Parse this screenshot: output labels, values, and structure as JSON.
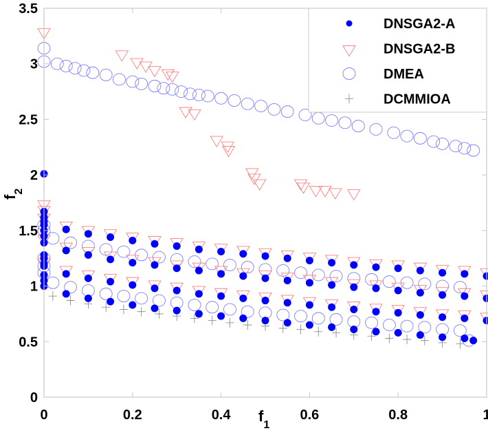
{
  "chart_data": {
    "type": "scatter",
    "title": "",
    "xlabel": "f",
    "xlabel_sub": "1",
    "ylabel": "f",
    "ylabel_sub": "2",
    "xlim": [
      0,
      1
    ],
    "ylim": [
      0,
      3.5
    ],
    "xticks": [
      "0",
      "0.2",
      "0.4",
      "0.6",
      "0.8",
      "1"
    ],
    "yticks": [
      "0",
      "0.5",
      "1",
      "1.5",
      "2",
      "2.5",
      "3",
      "3.5"
    ],
    "grid": false,
    "legend_position": "top-right",
    "series": [
      {
        "name": "DMEA",
        "marker": "circle-open",
        "color": "#7f7fff",
        "x": [
          0,
          0,
          0.03,
          0.05,
          0.07,
          0.09,
          0.11,
          0.14,
          0.17,
          0.2,
          0.22,
          0.25,
          0.27,
          0.29,
          0.31,
          0.33,
          0.35,
          0.37,
          0.4,
          0.43,
          0.46,
          0.49,
          0.52,
          0.55,
          0.59,
          0.62,
          0.65,
          0.68,
          0.71,
          0.75,
          0.79,
          0.82,
          0.85,
          0.88,
          0.9,
          0.93,
          0.95,
          0.97,
          0.02,
          0.06,
          0.1,
          0.14,
          0.18,
          0.22,
          0.26,
          0.3,
          0.34,
          0.38,
          0.42,
          0.46,
          0.5,
          0.54,
          0.58,
          0.62,
          0.66,
          0.7,
          0.74,
          0.78,
          0.82,
          0.86,
          0.9,
          0.94,
          0.02,
          0.06,
          0.1,
          0.14,
          0.18,
          0.22,
          0.26,
          0.3,
          0.34,
          0.38,
          0.42,
          0.46,
          0.5,
          0.54,
          0.58,
          0.62,
          0.66,
          0.7,
          0.74,
          0.78,
          0.82,
          0.86,
          0.9,
          0.94,
          0,
          0,
          0,
          0,
          0,
          0.96
        ],
        "y": [
          3.14,
          3.02,
          3.0,
          2.98,
          2.96,
          2.94,
          2.92,
          2.9,
          2.86,
          2.84,
          2.82,
          2.8,
          2.78,
          2.77,
          2.75,
          2.73,
          2.72,
          2.71,
          2.69,
          2.67,
          2.64,
          2.62,
          2.59,
          2.57,
          2.54,
          2.51,
          2.49,
          2.47,
          2.44,
          2.41,
          2.38,
          2.35,
          2.33,
          2.3,
          2.28,
          2.26,
          2.24,
          2.22,
          1.43,
          1.39,
          1.36,
          1.33,
          1.31,
          1.28,
          1.26,
          1.24,
          1.22,
          1.2,
          1.19,
          1.17,
          1.15,
          1.14,
          1.12,
          1.1,
          1.09,
          1.07,
          1.06,
          1.04,
          1.03,
          1.02,
          1.0,
          0.99,
          1.03,
          0.99,
          0.96,
          0.93,
          0.91,
          0.89,
          0.87,
          0.85,
          0.83,
          0.81,
          0.79,
          0.77,
          0.76,
          0.74,
          0.73,
          0.71,
          0.7,
          0.68,
          0.67,
          0.65,
          0.64,
          0.63,
          0.61,
          0.6,
          1.12,
          1.18,
          1.25,
          1.5,
          1.55,
          0.51
        ]
      },
      {
        "name": "DNSGA2-B",
        "marker": "triangle-down-open",
        "color": "#ff7f7f",
        "x": [
          0,
          0,
          0,
          0.176,
          0.21,
          0.23,
          0.25,
          0.28,
          0.29,
          0.32,
          0.34,
          0.39,
          0.415,
          0.417,
          0.47,
          0.475,
          0.487,
          0.58,
          0.586,
          0.614,
          0.635,
          0.658,
          0.7,
          0,
          0.05,
          0.1,
          0.15,
          0.2,
          0.25,
          0.3,
          0.35,
          0.4,
          0.45,
          0.5,
          0.55,
          0.6,
          0.65,
          0.7,
          0.75,
          0.8,
          0.85,
          0.9,
          0.95,
          1,
          0,
          0.05,
          0.1,
          0.15,
          0.2,
          0.25,
          0.3,
          0.35,
          0.4,
          0.45,
          0.5,
          0.55,
          0.6,
          0.65,
          0.7,
          0.75,
          0.8,
          0.85,
          0.9,
          0.95,
          1,
          0,
          0.05,
          0.1,
          0.15,
          0.2,
          0.25,
          0.3,
          0.35,
          0.4,
          0.45,
          0.5,
          0.55,
          0.6,
          0.65,
          0.7,
          0.75,
          0.8,
          0.85,
          0.9,
          0.95,
          1
        ],
        "y": [
          3.28,
          1.73,
          1.68,
          3.08,
          3.01,
          2.98,
          2.94,
          2.91,
          2.89,
          2.57,
          2.55,
          2.31,
          2.26,
          2.22,
          2.02,
          1.97,
          1.92,
          1.92,
          1.89,
          1.86,
          1.86,
          1.84,
          1.83,
          1.61,
          1.54,
          1.5,
          1.47,
          1.44,
          1.41,
          1.39,
          1.36,
          1.34,
          1.32,
          1.3,
          1.28,
          1.26,
          1.24,
          1.22,
          1.2,
          1.19,
          1.17,
          1.15,
          1.14,
          1.12,
          1.42,
          1.35,
          1.31,
          1.27,
          1.24,
          1.22,
          1.19,
          1.17,
          1.14,
          1.12,
          1.1,
          1.08,
          1.06,
          1.04,
          1.02,
          1.01,
          0.99,
          0.97,
          0.95,
          0.94,
          0.92,
          1.21,
          1.14,
          1.1,
          1.07,
          1.04,
          1.01,
          0.99,
          0.96,
          0.94,
          0.92,
          0.9,
          0.88,
          0.86,
          0.84,
          0.82,
          0.8,
          0.79,
          0.77,
          0.75,
          0.74,
          0.72
        ]
      },
      {
        "name": "DCMMIOA",
        "marker": "plus",
        "color": "#808080",
        "x": [
          0.02,
          0.06,
          0.1,
          0.14,
          0.18,
          0.22,
          0.26,
          0.3,
          0.34,
          0.38,
          0.42,
          0.46,
          0.5,
          0.54,
          0.58,
          0.62,
          0.66,
          0.7,
          0.74,
          0.78,
          0.82,
          0.86,
          0.9,
          0.94
        ],
        "y": [
          0.91,
          0.87,
          0.84,
          0.81,
          0.79,
          0.77,
          0.75,
          0.73,
          0.71,
          0.69,
          0.67,
          0.65,
          0.64,
          0.62,
          0.61,
          0.59,
          0.58,
          0.56,
          0.55,
          0.53,
          0.52,
          0.51,
          0.49,
          0.48
        ]
      },
      {
        "name": "DNSGA2-A",
        "marker": "dot-filled",
        "color": "#0000ff",
        "x": [
          0,
          0.05,
          0.1,
          0.15,
          0.2,
          0.25,
          0.3,
          0.35,
          0.4,
          0.45,
          0.5,
          0.55,
          0.6,
          0.65,
          0.7,
          0.75,
          0.8,
          0.85,
          0.9,
          0.95,
          1,
          0,
          0.05,
          0.1,
          0.15,
          0.2,
          0.25,
          0.3,
          0.35,
          0.4,
          0.45,
          0.5,
          0.55,
          0.6,
          0.65,
          0.7,
          0.75,
          0.8,
          0.85,
          0.9,
          0.95,
          1,
          0,
          0.05,
          0.1,
          0.15,
          0.2,
          0.25,
          0.3,
          0.35,
          0.4,
          0.45,
          0.5,
          0.55,
          0.6,
          0.65,
          0.7,
          0.75,
          0.8,
          0.85,
          0.9,
          0.95,
          1,
          0,
          0.05,
          0.1,
          0.15,
          0.2,
          0.25,
          0.3,
          0.35,
          0.4,
          0.45,
          0.5,
          0.55,
          0.6,
          0.65,
          0.7,
          0.75,
          0.8,
          0.85,
          0.9,
          0.95,
          0.97,
          0,
          0,
          0,
          0,
          0,
          0,
          0,
          0,
          0,
          0,
          0
        ],
        "y": [
          1.58,
          1.51,
          1.47,
          1.44,
          1.41,
          1.38,
          1.36,
          1.33,
          1.31,
          1.29,
          1.27,
          1.25,
          1.23,
          1.21,
          1.19,
          1.17,
          1.16,
          1.14,
          1.12,
          1.11,
          1.09,
          1.39,
          1.32,
          1.28,
          1.24,
          1.21,
          1.19,
          1.16,
          1.14,
          1.11,
          1.09,
          1.07,
          1.05,
          1.03,
          1.01,
          0.99,
          0.98,
          0.96,
          0.94,
          0.92,
          0.91,
          0.89,
          1.18,
          1.11,
          1.07,
          1.04,
          1.01,
          0.98,
          0.96,
          0.93,
          0.91,
          0.89,
          0.87,
          0.85,
          0.83,
          0.81,
          0.79,
          0.77,
          0.76,
          0.74,
          0.72,
          0.71,
          0.69,
          1.0,
          0.93,
          0.89,
          0.86,
          0.83,
          0.8,
          0.78,
          0.75,
          0.73,
          0.71,
          0.69,
          0.67,
          0.65,
          0.63,
          0.61,
          0.59,
          0.58,
          0.56,
          0.54,
          0.53,
          0.51,
          1.05,
          1.1,
          1.2,
          1.25,
          1.28,
          1.45,
          1.5,
          1.55,
          1.62,
          1.67,
          2.01
        ]
      }
    ],
    "legend": [
      "DNSGA2-A",
      "DNSGA2-B",
      "DMEA",
      "DCMMIOA"
    ]
  }
}
